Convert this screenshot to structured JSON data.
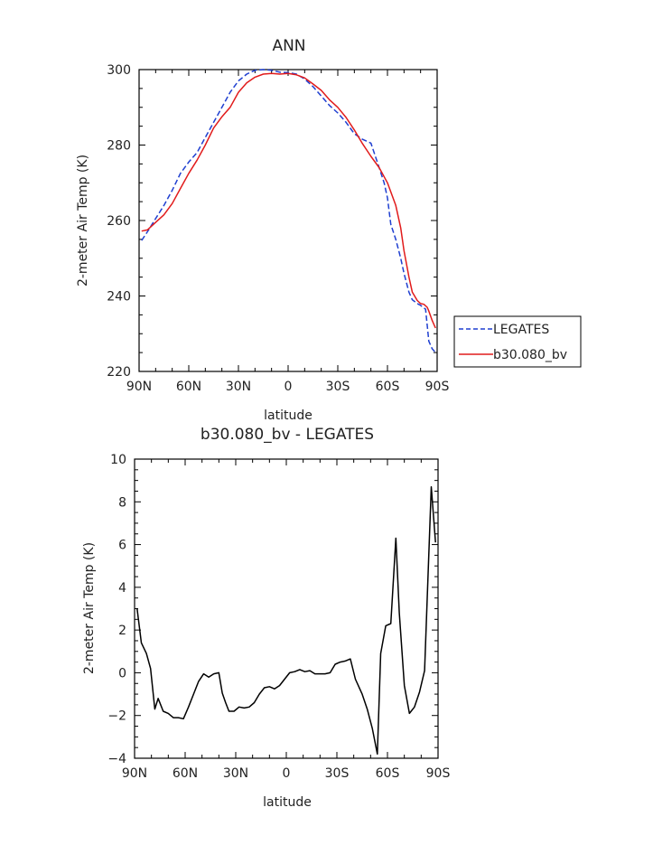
{
  "chart_data": [
    {
      "type": "line",
      "title": "ANN",
      "xlabel": "latitude",
      "ylabel": "2-meter Air Temp (K)",
      "xlim": [
        90,
        -90
      ],
      "ylim": [
        220,
        300
      ],
      "xticks": [
        {
          "value": 90,
          "label": "90N"
        },
        {
          "value": 60,
          "label": "60N"
        },
        {
          "value": 30,
          "label": "30N"
        },
        {
          "value": 0,
          "label": "0"
        },
        {
          "value": -30,
          "label": "30S"
        },
        {
          "value": -60,
          "label": "60S"
        },
        {
          "value": -90,
          "label": "90S"
        }
      ],
      "yticks": [
        220,
        240,
        260,
        280,
        300
      ],
      "legend_position": "outside-right",
      "series": [
        {
          "name": "LEGATES",
          "color": "#1f3fd0",
          "dash": "dashed",
          "x": [
            88.5,
            85,
            80,
            75,
            70,
            65,
            60,
            55,
            50,
            45,
            40,
            35,
            30,
            25,
            20,
            15,
            10,
            5,
            0,
            -5,
            -10,
            -15,
            -20,
            -25,
            -30,
            -35,
            -40,
            -45,
            -50,
            -55,
            -58,
            -60,
            -62,
            -65,
            -68,
            -70,
            -73,
            -75,
            -78,
            -80,
            -83,
            -85,
            -87,
            -89
          ],
          "y": [
            254.7,
            257,
            260.5,
            264,
            268,
            272.5,
            275.5,
            278,
            282,
            286,
            290,
            294,
            297,
            298.8,
            299.8,
            300,
            299.8,
            299.3,
            299.2,
            298.8,
            297.5,
            295.5,
            293,
            290.5,
            288.5,
            286,
            283,
            281.5,
            280.5,
            274,
            270,
            266,
            259,
            255,
            250,
            246,
            241,
            239,
            238,
            237.5,
            236.5,
            228,
            226,
            225
          ]
        },
        {
          "name": "b30.080_bv",
          "color": "#e11b1b",
          "dash": "solid",
          "x": [
            88.5,
            85,
            80,
            75,
            70,
            65,
            60,
            55,
            50,
            45,
            40,
            35,
            30,
            25,
            20,
            15,
            10,
            5,
            0,
            -5,
            -10,
            -15,
            -20,
            -25,
            -30,
            -35,
            -40,
            -45,
            -50,
            -55,
            -60,
            -65,
            -68,
            -70,
            -73,
            -75,
            -78,
            -80,
            -82,
            -84,
            -85,
            -87,
            -89
          ],
          "y": [
            257.2,
            257.5,
            259.5,
            261.5,
            264.5,
            268.5,
            272.5,
            276,
            280,
            284.5,
            287.5,
            290,
            294,
            296.5,
            298,
            298.8,
            299,
            298.8,
            299,
            298.6,
            297.8,
            296.2,
            294.5,
            292,
            290,
            287.3,
            284,
            280.3,
            277,
            274,
            270,
            264,
            258,
            252,
            245,
            241,
            238.8,
            238,
            237.8,
            237,
            236,
            233.5,
            231.5
          ]
        }
      ]
    },
    {
      "type": "line",
      "title": "b30.080_bv - LEGATES",
      "xlabel": "latitude",
      "ylabel": "2-meter Air Temp (K)",
      "xlim": [
        90,
        -90
      ],
      "ylim": [
        -4,
        10
      ],
      "xticks": [
        {
          "value": 90,
          "label": "90N"
        },
        {
          "value": 60,
          "label": "60N"
        },
        {
          "value": 30,
          "label": "30N"
        },
        {
          "value": 0,
          "label": "0"
        },
        {
          "value": -30,
          "label": "30S"
        },
        {
          "value": -60,
          "label": "60S"
        },
        {
          "value": -90,
          "label": "90S"
        }
      ],
      "yticks": [
        -4,
        -2,
        0,
        2,
        4,
        6,
        8,
        10
      ],
      "series": [
        {
          "color": "#000000",
          "dash": "solid",
          "x": [
            88.5,
            86,
            83,
            80.5,
            78,
            76,
            73,
            70,
            67,
            64,
            61,
            58,
            55,
            52,
            49,
            46,
            43,
            40,
            38,
            36,
            34,
            31,
            28,
            25,
            22,
            19,
            16,
            13,
            10,
            7,
            4,
            1,
            -2,
            -5,
            -8,
            -11,
            -14,
            -17,
            -20,
            -23,
            -26,
            -29,
            -32,
            -35,
            -38,
            -41,
            -45,
            -48,
            -51,
            -54,
            -56,
            -59,
            -62,
            -65,
            -67,
            -70,
            -73,
            -76,
            -79,
            -82,
            -86,
            -88.5
          ],
          "y": [
            3.0,
            1.4,
            0.9,
            0.2,
            -1.7,
            -1.2,
            -1.8,
            -1.9,
            -2.1,
            -2.1,
            -2.15,
            -1.6,
            -1.0,
            -0.4,
            -0.05,
            -0.2,
            -0.05,
            0.0,
            -0.95,
            -1.4,
            -1.8,
            -1.8,
            -1.6,
            -1.65,
            -1.6,
            -1.4,
            -1.0,
            -0.7,
            -0.65,
            -0.75,
            -0.6,
            -0.3,
            0.0,
            0.05,
            0.15,
            0.05,
            0.1,
            -0.05,
            -0.05,
            -0.05,
            0.0,
            0.4,
            0.5,
            0.55,
            0.65,
            -0.3,
            -1.0,
            -1.7,
            -2.6,
            -3.8,
            0.9,
            2.2,
            2.3,
            6.3,
            2.8,
            -0.6,
            -1.9,
            -1.6,
            -0.9,
            0.1,
            8.7,
            6.1
          ]
        }
      ]
    }
  ]
}
